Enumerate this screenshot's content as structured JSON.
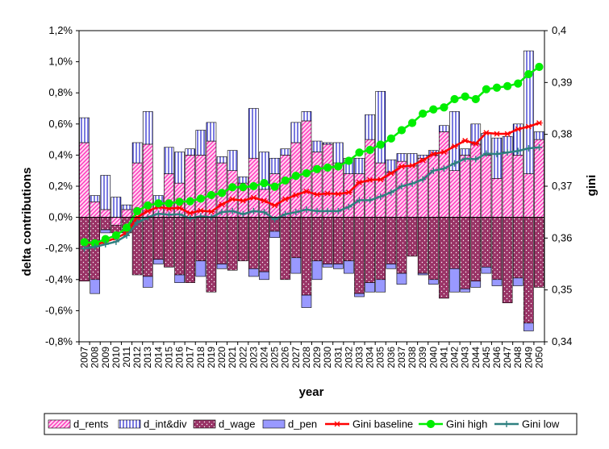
{
  "chart_data": {
    "type": "bar",
    "xlabel": "year",
    "ylabel_left": "delta contributions",
    "ylabel_right": "gini",
    "years": [
      2007,
      2008,
      2009,
      2010,
      2011,
      2012,
      2013,
      2014,
      2015,
      2016,
      2017,
      2018,
      2019,
      2020,
      2021,
      2022,
      2023,
      2024,
      2025,
      2026,
      2027,
      2028,
      2029,
      2030,
      2031,
      2032,
      2033,
      2034,
      2035,
      2036,
      2037,
      2038,
      2039,
      2040,
      2041,
      2042,
      2043,
      2044,
      2045,
      2046,
      2047,
      2048,
      2049,
      2050
    ],
    "left_ticks": [
      "-0,8%",
      "-0,6%",
      "-0,4%",
      "-0,2%",
      "0,0%",
      "0,2%",
      "0,4%",
      "0,6%",
      "0,8%",
      "1,0%",
      "1,2%"
    ],
    "right_ticks": [
      "0,34",
      "0,35",
      "0,36",
      "0,37",
      "0,38",
      "0,39",
      "0,4"
    ],
    "ylim_left": [
      -0.8,
      1.2
    ],
    "ylim_right": [
      0.34,
      0.4
    ],
    "bar_series": [
      {
        "name": "d_rents",
        "color": "#ff66cc",
        "pattern": "diagonal-hatch",
        "values": [
          0.48,
          0.1,
          0.05,
          -0.05,
          0.05,
          0.35,
          0.47,
          0.08,
          0.28,
          0.22,
          0.4,
          0.4,
          0.49,
          0.35,
          0.3,
          0.22,
          0.38,
          0.18,
          0.28,
          0.4,
          0.48,
          0.62,
          0.42,
          0.47,
          0.35,
          0.28,
          0.28,
          0.5,
          0.35,
          0.29,
          0.36,
          0.33,
          0.38,
          0.4,
          0.55,
          0.3,
          0.4,
          0.47,
          0.4,
          0.25,
          0.42,
          0.4,
          0.28,
          0.5
        ]
      },
      {
        "name": "d_int&div",
        "color": "#8888ff",
        "pattern": "vertical-lines",
        "values": [
          0.16,
          0.04,
          0.22,
          0.13,
          0.03,
          0.13,
          0.21,
          0.06,
          0.17,
          0.2,
          0.04,
          0.16,
          0.12,
          0.04,
          0.13,
          0.04,
          0.32,
          0.24,
          0.1,
          0.04,
          0.13,
          0.06,
          0.07,
          0.01,
          0.13,
          0.1,
          0.1,
          0.16,
          0.46,
          0.08,
          0.05,
          0.08,
          0.02,
          0.03,
          0.04,
          0.38,
          0.04,
          0.13,
          0.14,
          0.26,
          0.1,
          0.2,
          0.79,
          0.05
        ]
      },
      {
        "name": "d_wage",
        "color": "#993366",
        "pattern": "dotted",
        "values": [
          -0.41,
          -0.4,
          -0.08,
          -0.05,
          -0.1,
          -0.37,
          -0.38,
          -0.27,
          -0.32,
          -0.37,
          -0.42,
          -0.28,
          -0.48,
          -0.3,
          -0.34,
          -0.28,
          -0.33,
          -0.35,
          -0.09,
          -0.4,
          -0.26,
          -0.5,
          -0.28,
          -0.3,
          -0.3,
          -0.28,
          -0.49,
          -0.42,
          -0.4,
          -0.3,
          -0.36,
          -0.25,
          -0.36,
          -0.4,
          -0.52,
          -0.33,
          -0.46,
          -0.41,
          -0.32,
          -0.4,
          -0.55,
          -0.39,
          -0.68,
          -0.45
        ]
      },
      {
        "name": "d_pen",
        "color": "#9999ff",
        "pattern": "solid",
        "values": [
          0.0,
          -0.09,
          -0.02,
          0.0,
          0.0,
          0.0,
          -0.07,
          -0.03,
          0.0,
          -0.05,
          0.0,
          -0.1,
          0.0,
          -0.03,
          0.0,
          0.0,
          -0.05,
          -0.05,
          -0.04,
          0.0,
          -0.1,
          -0.08,
          -0.12,
          -0.02,
          -0.03,
          -0.08,
          -0.02,
          -0.06,
          -0.08,
          -0.03,
          -0.07,
          0.0,
          -0.01,
          -0.03,
          0.0,
          -0.15,
          -0.02,
          -0.04,
          -0.04,
          -0.04,
          0.0,
          -0.05,
          -0.05,
          0.0
        ]
      }
    ],
    "line_series": [
      {
        "name": "Gini baseline",
        "color": "#ff0000",
        "marker": "asterisk",
        "values": [
          0.3592,
          0.3587,
          0.3593,
          0.36,
          0.361,
          0.364,
          0.3652,
          0.366,
          0.3657,
          0.3658,
          0.3648,
          0.3653,
          0.3651,
          0.3665,
          0.3675,
          0.3672,
          0.3678,
          0.3672,
          0.3663,
          0.3675,
          0.3683,
          0.369,
          0.3684,
          0.3686,
          0.3685,
          0.3688,
          0.3707,
          0.3712,
          0.3713,
          0.3725,
          0.3738,
          0.374,
          0.375,
          0.3762,
          0.3766,
          0.3777,
          0.3788,
          0.3782,
          0.3803,
          0.3801,
          0.3801,
          0.381,
          0.3815,
          0.3822
        ]
      },
      {
        "name": "Gini high",
        "color": "#00ee00",
        "marker": "circle",
        "values": [
          0.3592,
          0.359,
          0.3598,
          0.3605,
          0.362,
          0.3652,
          0.3663,
          0.3667,
          0.3667,
          0.367,
          0.3671,
          0.3676,
          0.3683,
          0.3687,
          0.3698,
          0.3698,
          0.37,
          0.3706,
          0.3699,
          0.3711,
          0.372,
          0.3725,
          0.3733,
          0.3736,
          0.3738,
          0.3749,
          0.3765,
          0.377,
          0.378,
          0.3792,
          0.3808,
          0.3822,
          0.384,
          0.3848,
          0.3852,
          0.3868,
          0.3873,
          0.3868,
          0.3887,
          0.389,
          0.3893,
          0.3898,
          0.3916,
          0.393
        ]
      },
      {
        "name": "Gini low",
        "color": "#2f8080",
        "marker": "plus",
        "values": [
          0.358,
          0.3583,
          0.3588,
          0.3593,
          0.3605,
          0.363,
          0.364,
          0.3647,
          0.3645,
          0.3646,
          0.3638,
          0.3642,
          0.364,
          0.365,
          0.3652,
          0.3646,
          0.3652,
          0.365,
          0.3636,
          0.3646,
          0.365,
          0.3655,
          0.3652,
          0.3652,
          0.3652,
          0.366,
          0.3673,
          0.3673,
          0.368,
          0.3688,
          0.37,
          0.3705,
          0.3713,
          0.373,
          0.3734,
          0.3744,
          0.3753,
          0.3752,
          0.3763,
          0.3762,
          0.3765,
          0.3768,
          0.3773,
          0.3775
        ]
      }
    ],
    "legend": {
      "position": "bottom",
      "entries": [
        "d_rents",
        "d_int&div",
        "d_wage",
        "d_pen",
        "Gini baseline",
        "Gini high",
        "Gini low"
      ]
    }
  }
}
